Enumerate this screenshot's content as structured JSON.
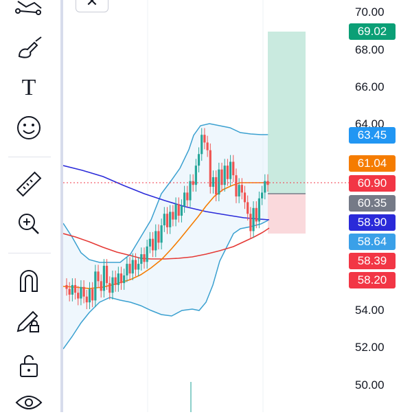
{
  "toolbar": {
    "tools": [
      {
        "name": "pattern-tool-icon"
      },
      {
        "name": "brush-icon"
      },
      {
        "name": "text-tool-icon",
        "glyph": "T"
      },
      {
        "name": "emoji-icon"
      },
      {
        "name": "ruler-icon"
      },
      {
        "name": "zoom-in-icon"
      },
      {
        "name": "magnet-icon"
      },
      {
        "name": "lock-drawing-icon"
      },
      {
        "name": "unlock-icon"
      },
      {
        "name": "eye-icon"
      }
    ]
  },
  "close_button": {
    "glyph": "✕"
  },
  "price_axis": {
    "ticks": [
      "70.00",
      "68.00",
      "66.00",
      "64.00",
      "54.00",
      "52.00",
      "50.00"
    ]
  },
  "price_labels": [
    {
      "value": "69.02",
      "color": "#0b9f76"
    },
    {
      "value": "63.45",
      "color": "#2196f3"
    },
    {
      "value": "61.04",
      "color": "#f57c00"
    },
    {
      "value": "60.90",
      "color": "#f23645"
    },
    {
      "value": "60.35",
      "color": "#757a87"
    },
    {
      "value": "58.90",
      "color": "#2a2ad9"
    },
    {
      "value": "58.64",
      "color": "#3aa0e8"
    },
    {
      "value": "58.39",
      "color": "#f23645"
    },
    {
      "value": "58.20",
      "color": "#f23645"
    }
  ],
  "chart_data": {
    "type": "candlestick",
    "ylim": [
      49.2,
      70.6
    ],
    "bollinger_upper_color": "#3aa0d0",
    "ma_colors": {
      "orange": "#f57c00",
      "red": "#e53935",
      "navy": "#2a2ad9"
    },
    "position_tool": {
      "target": 69.02,
      "entry": 60.35,
      "stop": 58.2,
      "profit_color": "#bfe6d9",
      "loss_color": "#f9d2d6"
    }
  }
}
